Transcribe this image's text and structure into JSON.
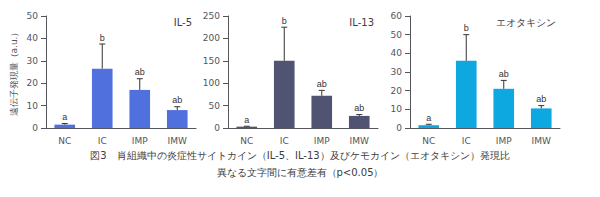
{
  "chart_data": [
    {
      "type": "bar",
      "title": "IL-5",
      "ylabel": "遠伝子発現量（a.u.）",
      "categories": [
        "NC",
        "IC",
        "IMP",
        "IMW"
      ],
      "values": [
        1.5,
        26.5,
        17.0,
        8.0
      ],
      "errors": [
        0.5,
        11.0,
        5.0,
        1.5
      ],
      "annotations": [
        "a",
        "b",
        "ab",
        "ab"
      ],
      "ylim": [
        0,
        50
      ],
      "yticks": [
        0,
        10,
        20,
        30,
        40,
        50
      ],
      "grid": false
    },
    {
      "type": "bar",
      "title": "IL-13",
      "categories": [
        "NC",
        "IC",
        "IMP",
        "IMW"
      ],
      "values": [
        3.0,
        150.0,
        72.0,
        27.0
      ],
      "errors": [
        1.0,
        75.0,
        12.0,
        3.0
      ],
      "annotations": [
        "a",
        "b",
        "ab",
        "ab"
      ],
      "ylim": [
        0,
        250
      ],
      "yticks": [
        0,
        50,
        100,
        150,
        200,
        250
      ],
      "grid": false
    },
    {
      "type": "bar",
      "title": "エオタキシン",
      "categories": [
        "NC",
        "IC",
        "IMP",
        "IMW"
      ],
      "values": [
        1.5,
        36.0,
        21.0,
        10.5
      ],
      "errors": [
        0.5,
        14.0,
        4.5,
        1.5
      ],
      "annotations": [
        "a",
        "b",
        "ab",
        "ab"
      ],
      "ylim": [
        0,
        60
      ],
      "yticks": [
        0,
        10,
        20,
        30,
        40,
        50,
        60
      ],
      "grid": false
    }
  ],
  "annotations": [
    "図3　肖組織中の炎症性サイトカイン（IL-5、IL-13）及びケモカイン（エオタキシン）発現比",
    "異なる文字間に有意差有（p<0.05）"
  ]
}
